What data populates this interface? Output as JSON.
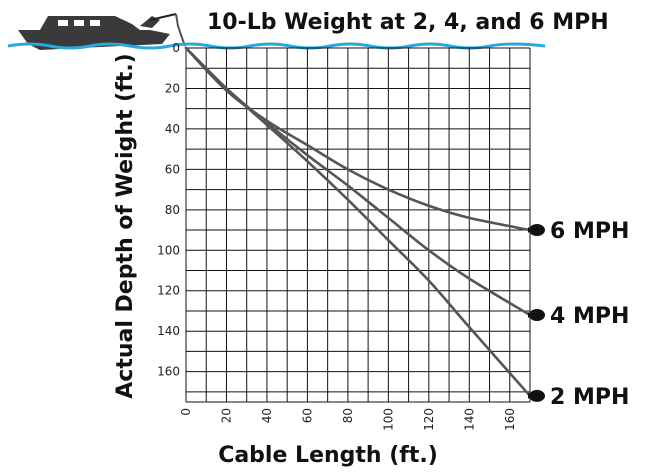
{
  "chart_data": {
    "type": "line",
    "title": "10-Lb Weight at 2, 4, and 6 MPH",
    "xlabel": "Cable Length (ft.)",
    "ylabel": "Actual Depth of Weight (ft.)",
    "xlim": [
      0,
      170
    ],
    "ylim": [
      0,
      175
    ],
    "y_inverted": true,
    "grid": true,
    "x_ticks": [
      "0",
      "20",
      "40",
      "60",
      "80",
      "100",
      "120",
      "140",
      "160"
    ],
    "y_ticks": [
      "0",
      "20",
      "40",
      "60",
      "80",
      "100",
      "120",
      "140",
      "160"
    ],
    "series": [
      {
        "name": "2 MPH",
        "x": [
          0,
          20,
          40,
          60,
          80,
          100,
          120,
          140,
          170
        ],
        "y": [
          0,
          20,
          38,
          56,
          75,
          95,
          115,
          138,
          172
        ]
      },
      {
        "name": "4 MPH",
        "x": [
          0,
          20,
          40,
          60,
          80,
          100,
          120,
          140,
          170
        ],
        "y": [
          0,
          20,
          37,
          53,
          68,
          84,
          100,
          114,
          132
        ]
      },
      {
        "name": "6 MPH",
        "x": [
          0,
          20,
          40,
          60,
          80,
          100,
          120,
          140,
          170
        ],
        "y": [
          0,
          21,
          36,
          48,
          60,
          70,
          78,
          84,
          90
        ]
      }
    ]
  },
  "colors": {
    "curve": "#555555",
    "water": "#29a8e0",
    "boat": "#3a3a3a",
    "grid": "#111111"
  },
  "icons": {
    "boat": "boat-icon",
    "weight": "weight-icon"
  }
}
